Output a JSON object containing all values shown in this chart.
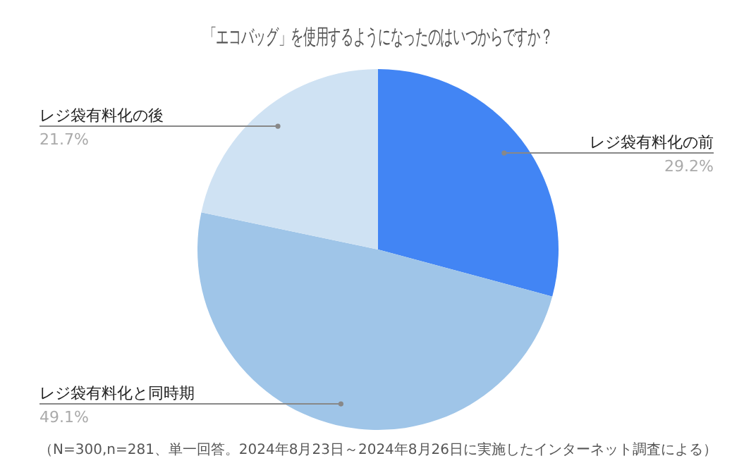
{
  "chart_data": {
    "type": "pie",
    "title": "「エコバッグ」を使用するようになったのはいつからですか？",
    "categories": [
      "レジ袋有料化の前",
      "レジ袋有料化と同時期",
      "レジ袋有料化の後"
    ],
    "values": [
      29.2,
      49.1,
      21.7
    ],
    "colors": [
      "#4285f4",
      "#9fc5e8",
      "#cfe2f3"
    ],
    "value_labels": [
      "29.2%",
      "49.1%",
      "21.7%"
    ],
    "annotations": [
      "（N=300,n=281、単一回答。2024年8月23日～2024年8月26日に実施したインターネット調査による）"
    ]
  }
}
